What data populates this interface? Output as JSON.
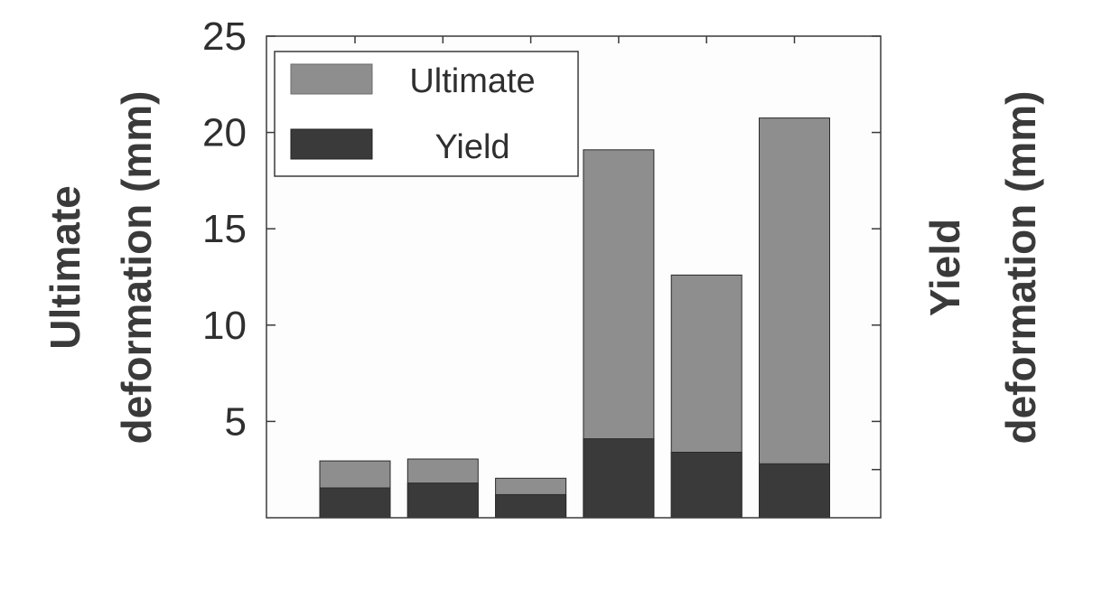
{
  "chart_data": {
    "type": "bar",
    "stacked": false,
    "overlaid": true,
    "categories": [
      "",
      "",
      "",
      "",
      "",
      ""
    ],
    "series": [
      {
        "name": "Ultimate",
        "color": "#8e8e8e",
        "values": [
          2.95,
          3.05,
          2.05,
          19.1,
          12.6,
          20.75
        ]
      },
      {
        "name": "Yield",
        "color": "#3a3a3a",
        "values": [
          1.55,
          1.8,
          1.2,
          4.1,
          3.4,
          2.8
        ]
      }
    ],
    "ylim": [
      0,
      25
    ],
    "yticks": [
      5,
      10,
      15,
      20,
      25
    ],
    "ylabel_left": [
      "Ultimate",
      "deformation (mm)"
    ],
    "ylabel_right": [
      "Yield",
      "deformation (mm)"
    ],
    "xlabel": "",
    "legend": {
      "placement": "top-left",
      "entries": [
        "Ultimate",
        "Yield"
      ]
    },
    "grid": false,
    "plot_background": "#fdfdfd"
  }
}
